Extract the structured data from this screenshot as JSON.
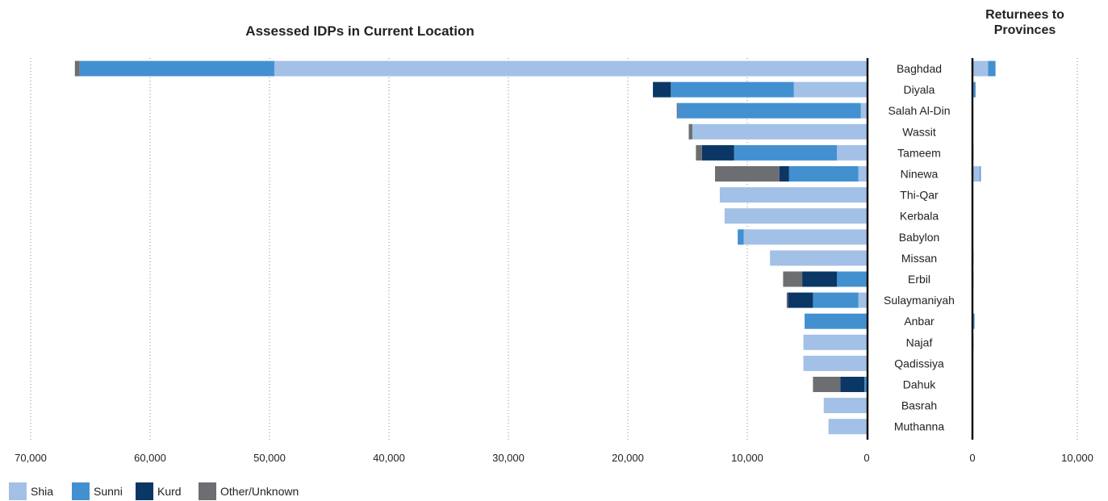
{
  "chart_data": [
    {
      "type": "bar",
      "orientation": "horizontal",
      "stacked": true,
      "title": "Assessed IDPs in Current Location",
      "xlim": [
        70000,
        0
      ],
      "x_direction": "reversed",
      "grid": "vertical dotted",
      "tick_labels": [
        "70,000",
        "60,000",
        "50,000",
        "40,000",
        "30,000",
        "20,000",
        "10,000",
        "0"
      ],
      "tick_values": [
        70000,
        60000,
        50000,
        40000,
        30000,
        20000,
        10000,
        0
      ],
      "categories": [
        "Baghdad",
        "Diyala",
        "Salah Al-Din",
        "Wassit",
        "Tameem",
        "Ninewa",
        "Thi-Qar",
        "Kerbala",
        "Babylon",
        "Missan",
        "Erbil",
        "Sulaymaniyah",
        "Anbar",
        "Najaf",
        "Qadissiya",
        "Dahuk",
        "Basrah",
        "Muthanna"
      ],
      "series": [
        {
          "name": "Shia",
          "color": "#a3c0e6",
          "values": [
            49600,
            6100,
            500,
            14600,
            2500,
            700,
            12300,
            11900,
            10300,
            8100,
            0,
            700,
            0,
            5300,
            5300,
            0,
            3600,
            3200
          ]
        },
        {
          "name": "Sunni",
          "color": "#4390d0",
          "values": [
            16300,
            10300,
            15300,
            0,
            8600,
            5800,
            0,
            0,
            500,
            0,
            2500,
            3800,
            5200,
            0,
            0,
            200,
            0,
            0
          ]
        },
        {
          "name": "Kurd",
          "color": "#0a3766",
          "values": [
            0,
            1500,
            0,
            0,
            2700,
            800,
            0,
            0,
            0,
            0,
            2900,
            2100,
            0,
            0,
            0,
            2000,
            0,
            0
          ]
        },
        {
          "name": "Other/Unknown",
          "color": "#6d6e71",
          "values": [
            400,
            0,
            100,
            300,
            500,
            5400,
            0,
            0,
            0,
            0,
            1600,
            100,
            0,
            0,
            0,
            2300,
            0,
            0
          ]
        }
      ]
    },
    {
      "type": "bar",
      "orientation": "horizontal",
      "stacked": true,
      "title": "Returnees to Provinces",
      "xlim": [
        0,
        10000
      ],
      "grid": "vertical dotted",
      "tick_labels": [
        "0",
        "10,000"
      ],
      "tick_values": [
        0,
        10000
      ],
      "categories": [
        "Baghdad",
        "Diyala",
        "Salah Al-Din",
        "Wassit",
        "Tameem",
        "Ninewa",
        "Thi-Qar",
        "Kerbala",
        "Babylon",
        "Missan",
        "Erbil",
        "Sulaymaniyah",
        "Anbar",
        "Najaf",
        "Qadissiya",
        "Dahuk",
        "Basrah",
        "Muthanna"
      ],
      "series": [
        {
          "name": "Shia",
          "color": "#a3c0e6",
          "values": [
            1500,
            100,
            0,
            0,
            0,
            700,
            0,
            0,
            0,
            0,
            0,
            0,
            0,
            0,
            0,
            0,
            0,
            0
          ]
        },
        {
          "name": "Sunni",
          "color": "#4390d0",
          "values": [
            700,
            200,
            50,
            0,
            100,
            100,
            0,
            0,
            50,
            100,
            100,
            0,
            200,
            100,
            0,
            0,
            0,
            0
          ]
        },
        {
          "name": "Kurd",
          "color": "#0a3766",
          "values": [
            0,
            0,
            0,
            0,
            0,
            0,
            0,
            0,
            0,
            0,
            0,
            0,
            0,
            0,
            0,
            0,
            0,
            0
          ]
        },
        {
          "name": "Other/Unknown",
          "color": "#6d6e71",
          "values": [
            0,
            0,
            0,
            0,
            0,
            0,
            0,
            0,
            0,
            0,
            0,
            0,
            0,
            0,
            0,
            0,
            0,
            0
          ]
        }
      ]
    }
  ],
  "legend": {
    "position": "bottom-left",
    "items": [
      {
        "label": "Shia",
        "color": "#a3c0e6"
      },
      {
        "label": "Sunni",
        "color": "#4390d0"
      },
      {
        "label": "Kurd",
        "color": "#0a3766"
      },
      {
        "label": "Other/Unknown",
        "color": "#6d6e71"
      }
    ]
  }
}
